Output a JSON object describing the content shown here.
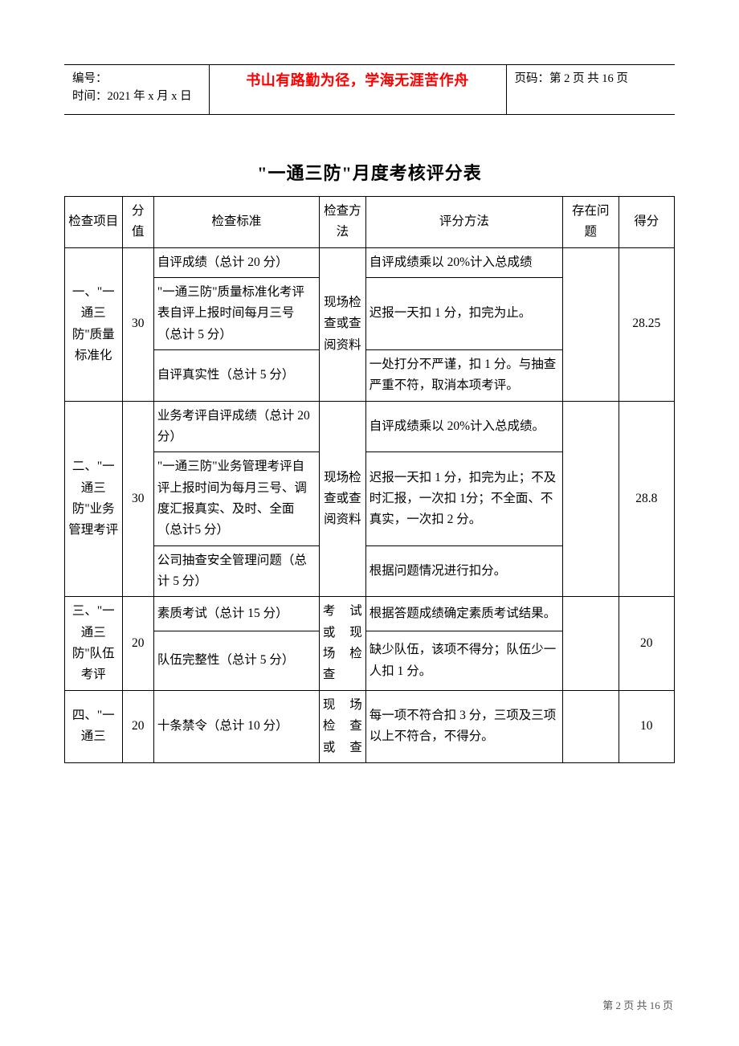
{
  "header": {
    "label_number": "编号：",
    "label_time": "时间：2021 年 x 月 x 日",
    "quote": "书山有路勤为径，学海无涯苦作舟",
    "pageinfo": "页码：第 2 页 共 16 页"
  },
  "title": "\"一通三防\"月度考核评分表",
  "columns": {
    "item": "检查项目",
    "value": "分值",
    "standard": "检查标准",
    "method": "检查方法",
    "eval": "评分方法",
    "issue": "存在问题",
    "score": "得分"
  },
  "rows": [
    {
      "item": "一、\"一通三防\"质量标准化",
      "value": "30",
      "method": "现场检查或查阅资料",
      "issue": "",
      "score": "28.25",
      "subs": [
        {
          "std": "自评成绩（总计 20 分）",
          "eval": "自评成绩乘以 20%计入总成绩"
        },
        {
          "std": "\"一通三防\"质量标准化考评表自评上报时间每月三号（总计 5 分）",
          "eval": "迟报一天扣 1 分，扣完为止。"
        },
        {
          "std": "自评真实性（总计 5 分）",
          "eval": "一处打分不严谨，扣 1 分。与抽查严重不符，取消本项考评。"
        }
      ]
    },
    {
      "item": "二、\"一通三防\"业务管理考评",
      "value": "30",
      "method": "现场检查或查 阅资料",
      "issue": "",
      "score": "28.8",
      "subs": [
        {
          "std": "业务考评自评成绩（总计 20 分）",
          "eval": "自评成绩乘以 20%计入总成绩。"
        },
        {
          "std": "\"一通三防\"业务管理考评自评上报时间为每月三号、调度汇报真实、及时、全面（总计5 分）",
          "eval": "迟报一天扣 1 分，扣完为止；不及时汇报，一次扣 1分；不全面、不真实，一次扣 2 分。"
        },
        {
          "std": "公司抽查安全管理问题（总计 5 分）",
          "eval": "根据问题情况进行扣分。"
        }
      ]
    },
    {
      "item": "三、\"一通三防\"队伍考评",
      "value": "20",
      "method": "考 试或 现场 检查",
      "issue": "",
      "score": "20",
      "subs": [
        {
          "std": "素质考试（总计 15 分）",
          "eval": "根据答题成绩确定素质考试结果。"
        },
        {
          "std": "队伍完整性（总计 5 分）",
          "eval": "缺少队伍，该项不得分；队伍少一人扣 1 分。"
        }
      ]
    },
    {
      "item": "四、\"一通三",
      "value": "20",
      "method": "现 场检 查或 查",
      "issue": "",
      "score": "10",
      "subs": [
        {
          "std": "十条禁令（总计 10 分）",
          "eval": "每一项不符合扣 3 分，三项及三项以上不符合，不得分。"
        }
      ]
    }
  ],
  "footer": "第 2 页 共 16 页"
}
